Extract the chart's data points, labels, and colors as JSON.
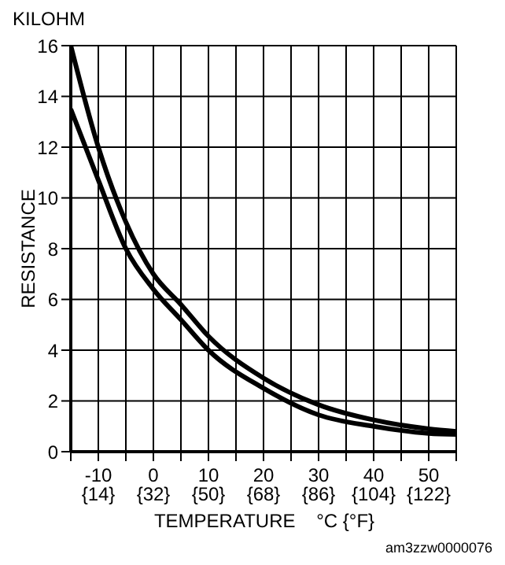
{
  "chart_data": {
    "type": "line",
    "xlabel": "TEMPERATURE    °C {°F}",
    "ylabel": "RESISTANCE",
    "annotations": [
      "KILOHM",
      "am3zzw0000076"
    ],
    "x": [
      -15,
      -10,
      -5,
      0,
      5,
      10,
      20,
      30,
      40,
      50,
      55
    ],
    "series": [
      {
        "color": "#000000",
        "values": [
          16,
          12,
          9.05,
          7,
          5.8,
          4.55,
          2.9,
          1.85,
          1.25,
          0.9,
          0.8
        ]
      },
      {
        "color": "#000000",
        "values": [
          13.5,
          10.7,
          8,
          6.4,
          5.2,
          4,
          2.5,
          1.45,
          1,
          0.72,
          0.68
        ]
      }
    ],
    "xlim": [
      -15,
      55
    ],
    "xticks": [
      {
        "value": -15,
        "label": null
      },
      -10,
      {
        "value": -5,
        "label": null
      },
      0,
      {
        "value": 5,
        "label": null
      },
      10,
      {
        "value": 15,
        "label": null
      },
      20,
      {
        "value": 25,
        "label": null
      },
      30,
      {
        "value": 35,
        "label": null
      },
      40,
      {
        "value": 45,
        "label": null
      },
      50,
      {
        "value": 55,
        "label": null
      }
    ],
    "x2lim": [
      5,
      131
    ],
    "x2ticks": [
      {
        "value": 14,
        "label": "{14}"
      },
      {
        "value": 32,
        "label": "{32}"
      },
      {
        "value": 50,
        "label": "{50}"
      },
      {
        "value": 68,
        "label": "{68}"
      },
      {
        "value": 86,
        "label": "{86}"
      },
      {
        "value": 104,
        "label": "{104}"
      },
      {
        "value": 122,
        "label": "{122}"
      }
    ],
    "ylim": [
      0,
      16
    ],
    "yticks": [
      0,
      2,
      4,
      6,
      8,
      10,
      12,
      14,
      16
    ],
    "grid": true,
    "marker": "none",
    "line_style": "solid",
    "legend": false
  }
}
